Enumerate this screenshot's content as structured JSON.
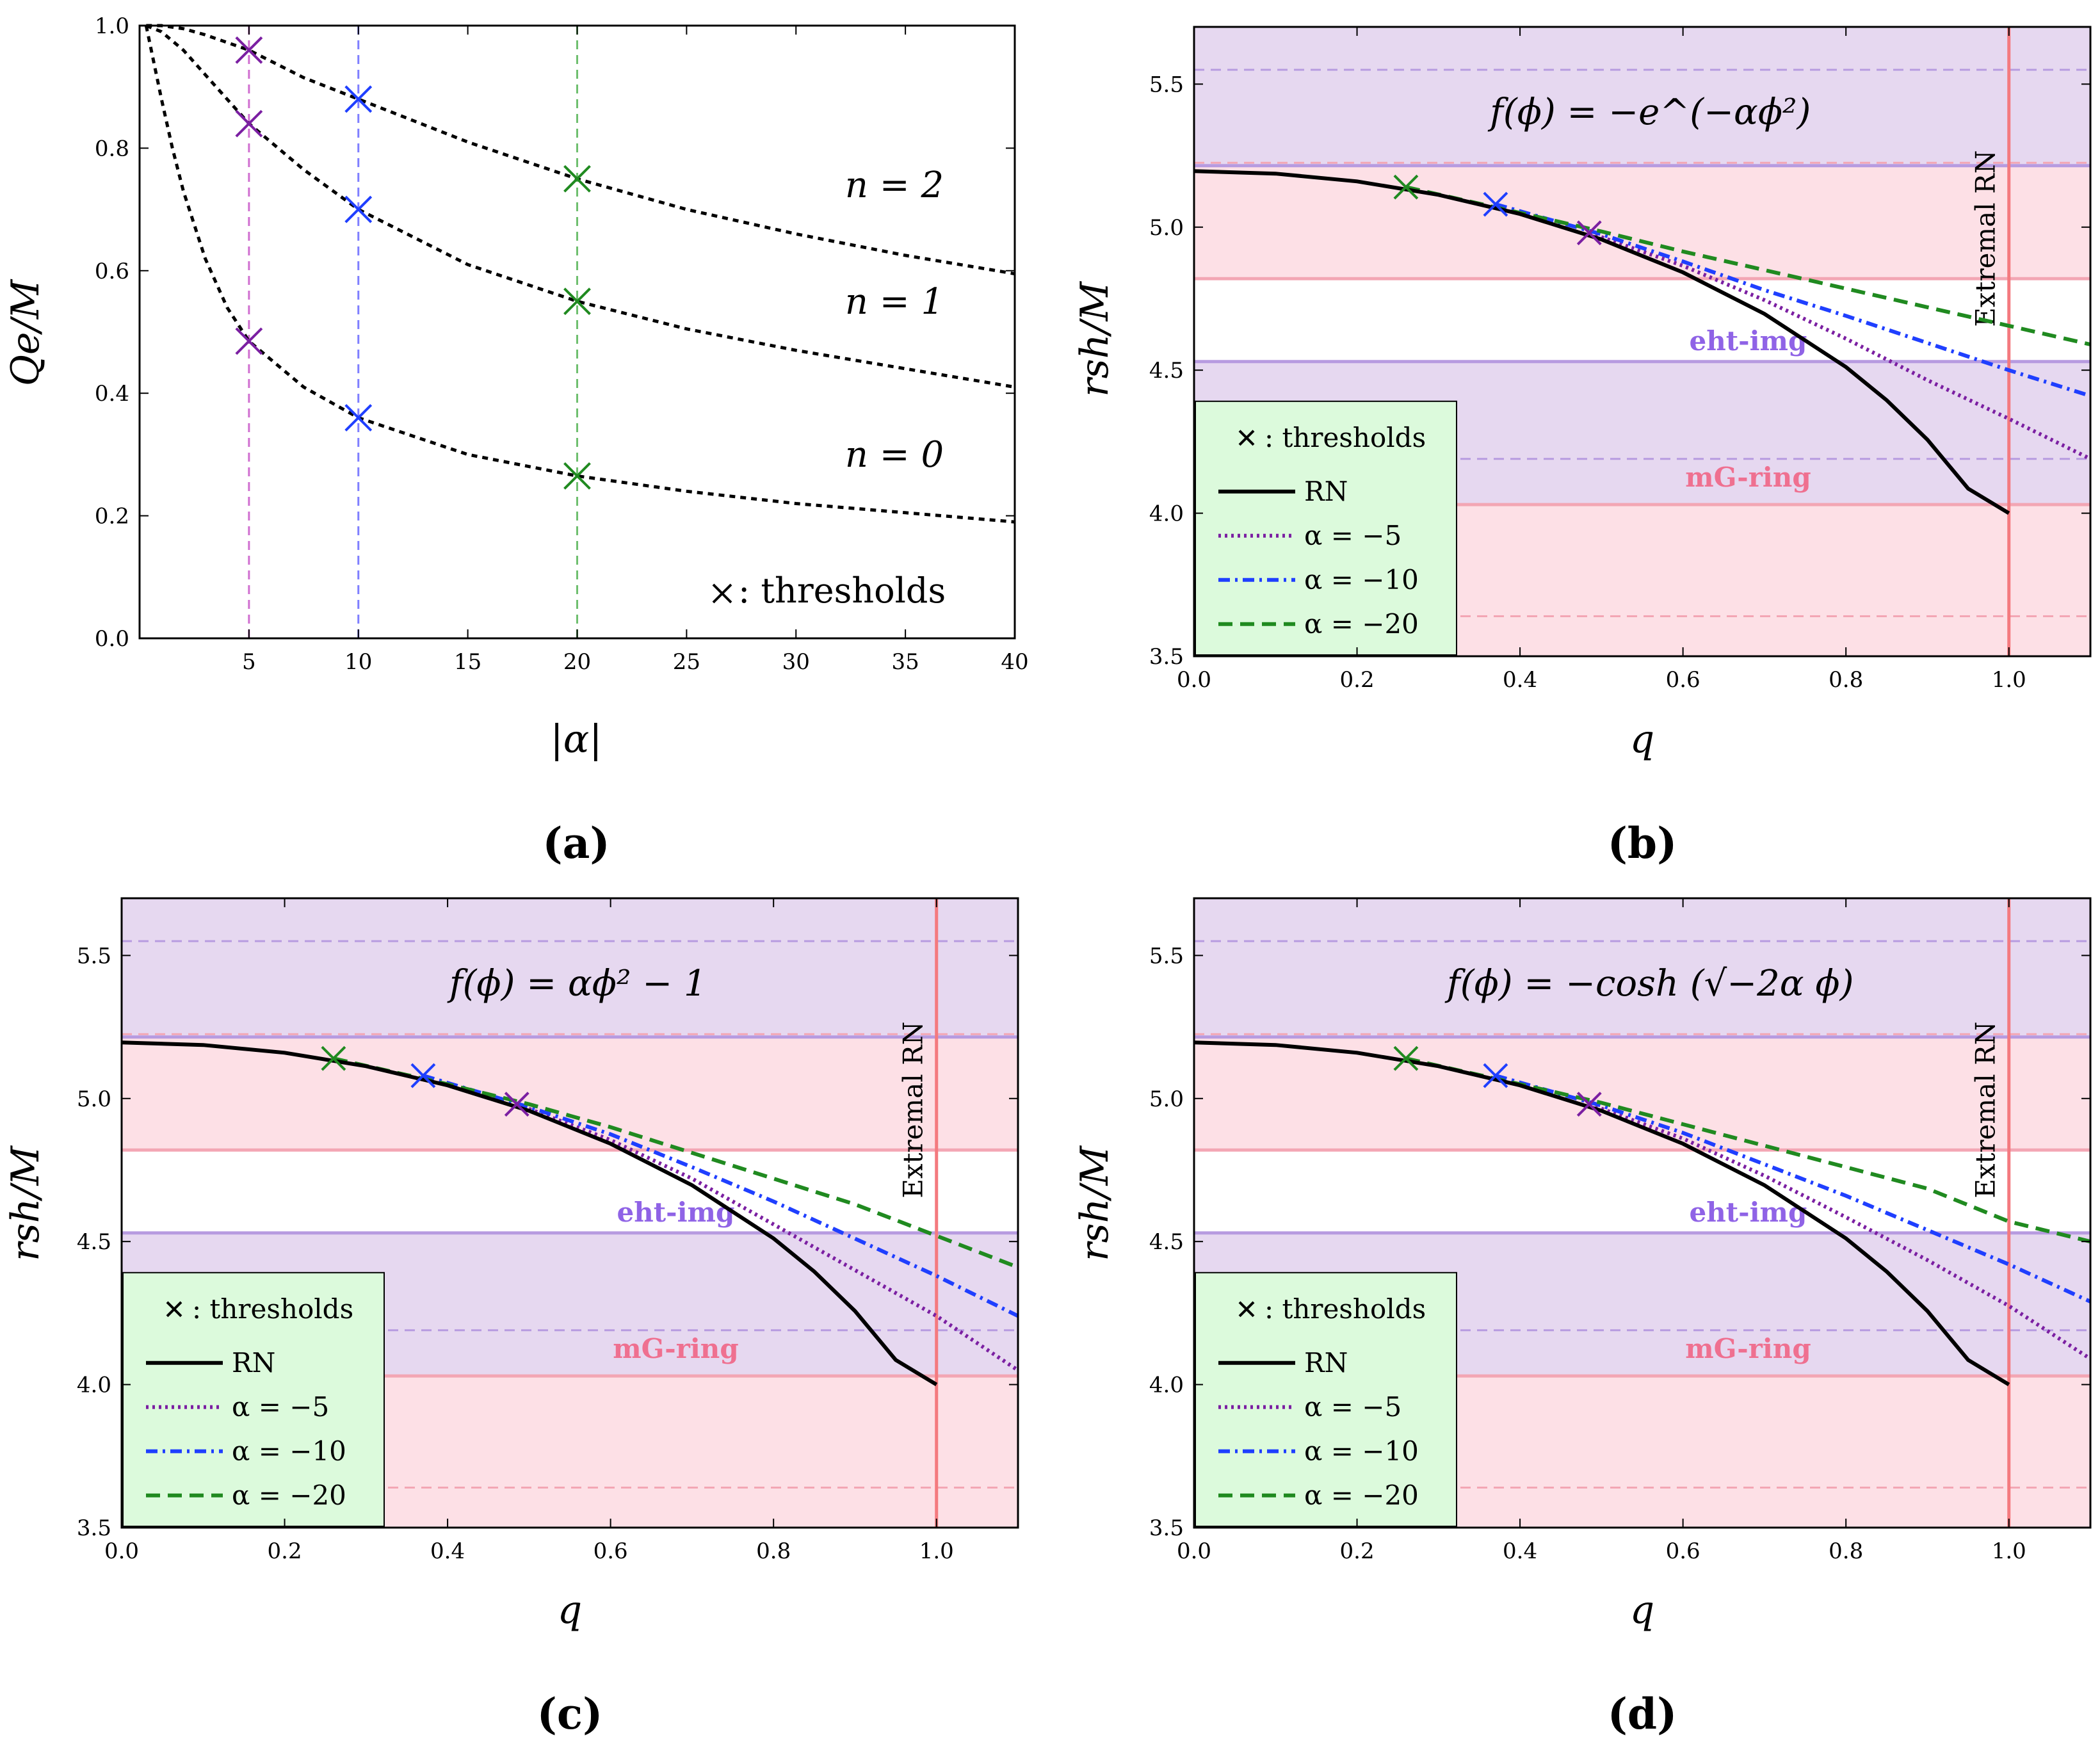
{
  "colors": {
    "violet_band": "#e6d8f0",
    "pink_band": "#fde0e6",
    "violet_line": "#b79be0",
    "pink_line": "#f3a6b4",
    "extremal_line": "#f47a7f",
    "legend_bg": "#dcfadc",
    "purple": "#7b1fa2",
    "blue": "#1f3fff",
    "green": "#208a20",
    "black": "#000000",
    "violet_text": "#8f63e6",
    "pink_text": "#ef7090",
    "grid_purple": "#d06fd0",
    "grid_blue": "#7f7fff",
    "grid_green": "#6fbf6f"
  },
  "chart_data": [
    {
      "id": "a",
      "type": "line",
      "caption": "(a)",
      "xlabel": "|α|",
      "ylabel": "Qe/M",
      "xlim": [
        0,
        40
      ],
      "ylim": [
        0,
        1
      ],
      "xticks": [
        "5",
        "10",
        "15",
        "20",
        "25",
        "30",
        "35",
        "40"
      ],
      "xtick_values": [
        5,
        10,
        15,
        20,
        25,
        30,
        35,
        40
      ],
      "yticks": [
        "0.0",
        "0.2",
        "0.4",
        "0.6",
        "0.8",
        "1.0"
      ],
      "ytick_values": [
        0,
        0.2,
        0.4,
        0.6,
        0.8,
        1.0
      ],
      "vertical_lines": [
        {
          "x": 5,
          "color": "grid_purple"
        },
        {
          "x": 10,
          "color": "grid_blue"
        },
        {
          "x": 20,
          "color": "grid_green"
        }
      ],
      "series": [
        {
          "name": "n = 2",
          "x": [
            0.3,
            1,
            2,
            3,
            5,
            7.5,
            10,
            15,
            20,
            25,
            30,
            35,
            40
          ],
          "y": [
            1.0,
            1.0,
            0.995,
            0.985,
            0.96,
            0.915,
            0.88,
            0.81,
            0.75,
            0.7,
            0.66,
            0.625,
            0.595
          ]
        },
        {
          "name": "n = 1",
          "x": [
            0.3,
            1,
            2,
            3,
            5,
            7.5,
            10,
            15,
            20,
            25,
            30,
            35,
            40
          ],
          "y": [
            1.0,
            0.99,
            0.96,
            0.92,
            0.84,
            0.765,
            0.7,
            0.61,
            0.55,
            0.505,
            0.47,
            0.44,
            0.41
          ]
        },
        {
          "name": "n = 0",
          "x": [
            0.3,
            1,
            1.5,
            2,
            3,
            4,
            5,
            7.5,
            10,
            15,
            20,
            25,
            30,
            35,
            40
          ],
          "y": [
            1.0,
            0.88,
            0.8,
            0.73,
            0.62,
            0.54,
            0.485,
            0.41,
            0.36,
            0.3,
            0.265,
            0.24,
            0.22,
            0.205,
            0.19
          ]
        }
      ],
      "thresholds": [
        {
          "x": 5,
          "y": 0.96,
          "color": "purple"
        },
        {
          "x": 5,
          "y": 0.84,
          "color": "purple"
        },
        {
          "x": 5,
          "y": 0.485,
          "color": "purple"
        },
        {
          "x": 10,
          "y": 0.88,
          "color": "blue"
        },
        {
          "x": 10,
          "y": 0.7,
          "color": "blue"
        },
        {
          "x": 10,
          "y": 0.36,
          "color": "blue"
        },
        {
          "x": 20,
          "y": 0.75,
          "color": "green"
        },
        {
          "x": 20,
          "y": 0.55,
          "color": "green"
        },
        {
          "x": 20,
          "y": 0.265,
          "color": "green"
        }
      ],
      "labels": [
        {
          "text": "n = 2",
          "x": 34.5,
          "y": 0.72
        },
        {
          "text": "n = 1",
          "x": 34.5,
          "y": 0.53
        },
        {
          "text": "n = 0",
          "x": 34.5,
          "y": 0.28
        }
      ],
      "legend": "× :  thresholds"
    },
    {
      "id": "b",
      "type": "line",
      "caption": "(b)",
      "title": "f(ϕ) = −e^(−αϕ²)",
      "xlabel": "q",
      "ylabel": "rsh/M",
      "xlim": [
        0,
        1.1
      ],
      "ylim": [
        3.5,
        5.7
      ],
      "xticks": [
        "0.0",
        "0.2",
        "0.4",
        "0.6",
        "0.8",
        "1.0"
      ],
      "xtick_values": [
        0,
        0.2,
        0.4,
        0.6,
        0.8,
        1.0
      ],
      "yticks": [
        "3.5",
        "4.0",
        "4.5",
        "5.0",
        "5.5"
      ],
      "ytick_values": [
        3.5,
        4.0,
        4.5,
        5.0,
        5.5
      ],
      "series": [
        {
          "name": "RN",
          "x": [
            0,
            0.1,
            0.2,
            0.3,
            0.4,
            0.5,
            0.6,
            0.7,
            0.8,
            0.85,
            0.9,
            0.95,
            1.0
          ],
          "y": [
            5.196,
            5.187,
            5.16,
            5.113,
            5.046,
            4.957,
            4.842,
            4.697,
            4.511,
            4.395,
            4.257,
            4.086,
            4.0
          ]
        },
        {
          "name": "α = −5",
          "x": [
            0.485,
            0.6,
            0.7,
            0.8,
            0.9,
            1.0,
            1.1
          ],
          "y": [
            4.98,
            4.865,
            4.745,
            4.61,
            4.465,
            4.33,
            4.19
          ]
        },
        {
          "name": "α = −10",
          "x": [
            0.37,
            0.5,
            0.6,
            0.7,
            0.8,
            0.9,
            1.0,
            1.1
          ],
          "y": [
            5.08,
            4.975,
            4.88,
            4.78,
            4.69,
            4.595,
            4.5,
            4.41
          ]
        },
        {
          "name": "α = −20",
          "x": [
            0.26,
            0.4,
            0.5,
            0.6,
            0.7,
            0.8,
            0.9,
            1.0,
            1.1
          ],
          "y": [
            5.14,
            5.05,
            4.985,
            4.915,
            4.85,
            4.785,
            4.72,
            4.655,
            4.59
          ]
        }
      ],
      "thresholds": [
        {
          "x": 0.26,
          "y": 5.14,
          "color": "green"
        },
        {
          "x": 0.37,
          "y": 5.08,
          "color": "blue"
        },
        {
          "x": 0.485,
          "y": 4.98,
          "color": "purple"
        }
      ]
    },
    {
      "id": "c",
      "type": "line",
      "caption": "(c)",
      "title": "f(ϕ) = αϕ² − 1",
      "xlabel": "q",
      "ylabel": "rsh/M",
      "xlim": [
        0,
        1.1
      ],
      "ylim": [
        3.5,
        5.7
      ],
      "xticks": [
        "0.0",
        "0.2",
        "0.4",
        "0.6",
        "0.8",
        "1.0"
      ],
      "xtick_values": [
        0,
        0.2,
        0.4,
        0.6,
        0.8,
        1.0
      ],
      "yticks": [
        "3.5",
        "4.0",
        "4.5",
        "5.0",
        "5.5"
      ],
      "ytick_values": [
        3.5,
        4.0,
        4.5,
        5.0,
        5.5
      ],
      "series": [
        {
          "name": "RN",
          "x": [
            0,
            0.1,
            0.2,
            0.3,
            0.4,
            0.5,
            0.6,
            0.7,
            0.8,
            0.85,
            0.9,
            0.95,
            1.0
          ],
          "y": [
            5.196,
            5.187,
            5.16,
            5.113,
            5.046,
            4.957,
            4.842,
            4.697,
            4.511,
            4.395,
            4.257,
            4.086,
            4.0
          ]
        },
        {
          "name": "α = −5",
          "x": [
            0.485,
            0.6,
            0.7,
            0.8,
            0.9,
            1.0,
            1.1
          ],
          "y": [
            4.98,
            4.855,
            4.72,
            4.56,
            4.4,
            4.24,
            4.05
          ]
        },
        {
          "name": "α = −10",
          "x": [
            0.37,
            0.5,
            0.6,
            0.7,
            0.8,
            0.9,
            1.0,
            1.1
          ],
          "y": [
            5.08,
            4.97,
            4.875,
            4.76,
            4.64,
            4.51,
            4.38,
            4.24
          ]
        },
        {
          "name": "α = −20",
          "x": [
            0.26,
            0.4,
            0.5,
            0.6,
            0.7,
            0.8,
            0.9,
            1.0,
            1.1
          ],
          "y": [
            5.14,
            5.05,
            4.98,
            4.9,
            4.81,
            4.72,
            4.63,
            4.52,
            4.41
          ]
        }
      ],
      "thresholds": [
        {
          "x": 0.26,
          "y": 5.14,
          "color": "green"
        },
        {
          "x": 0.37,
          "y": 5.08,
          "color": "blue"
        },
        {
          "x": 0.485,
          "y": 4.98,
          "color": "purple"
        }
      ]
    },
    {
      "id": "d",
      "type": "line",
      "caption": "(d)",
      "title": "f(ϕ) = −cosh (√−2α ϕ)",
      "xlabel": "q",
      "ylabel": "rsh/M",
      "xlim": [
        0,
        1.1
      ],
      "ylim": [
        3.5,
        5.7
      ],
      "xticks": [
        "0.0",
        "0.2",
        "0.4",
        "0.6",
        "0.8",
        "1.0"
      ],
      "xtick_values": [
        0,
        0.2,
        0.4,
        0.6,
        0.8,
        1.0
      ],
      "yticks": [
        "3.5",
        "4.0",
        "4.5",
        "5.0",
        "5.5"
      ],
      "ytick_values": [
        3.5,
        4.0,
        4.5,
        5.0,
        5.5
      ],
      "series": [
        {
          "name": "RN",
          "x": [
            0,
            0.1,
            0.2,
            0.3,
            0.4,
            0.5,
            0.6,
            0.7,
            0.8,
            0.85,
            0.9,
            0.95,
            1.0
          ],
          "y": [
            5.196,
            5.187,
            5.16,
            5.113,
            5.046,
            4.957,
            4.842,
            4.697,
            4.511,
            4.395,
            4.257,
            4.086,
            4.0
          ]
        },
        {
          "name": "α = −5",
          "x": [
            0.485,
            0.6,
            0.7,
            0.8,
            0.9,
            1.0,
            1.1
          ],
          "y": [
            4.98,
            4.86,
            4.73,
            4.585,
            4.435,
            4.275,
            4.09
          ]
        },
        {
          "name": "α = −10",
          "x": [
            0.37,
            0.5,
            0.6,
            0.7,
            0.8,
            0.9,
            1.0,
            1.1
          ],
          "y": [
            5.08,
            4.975,
            4.88,
            4.77,
            4.66,
            4.54,
            4.42,
            4.29
          ]
        },
        {
          "name": "α = −20",
          "x": [
            0.26,
            0.4,
            0.5,
            0.6,
            0.7,
            0.8,
            0.9,
            1.0,
            1.1
          ],
          "y": [
            5.14,
            5.05,
            4.985,
            4.91,
            4.835,
            4.76,
            4.685,
            4.57,
            4.5
          ]
        }
      ],
      "thresholds": [
        {
          "x": 0.26,
          "y": 5.14,
          "color": "green"
        },
        {
          "x": 0.37,
          "y": 5.08,
          "color": "blue"
        },
        {
          "x": 0.485,
          "y": 4.98,
          "color": "purple"
        }
      ]
    }
  ],
  "shadow_panel": {
    "violet_band_upper": [
      5.22,
      5.7
    ],
    "pink_band": [
      3.5,
      5.22
    ],
    "white_gap": [
      4.53,
      4.82
    ],
    "violet_band_lower": [
      4.03,
      4.53
    ],
    "lines": [
      {
        "y": 5.55,
        "style": "dashed",
        "color": "violet_line"
      },
      {
        "y": 5.225,
        "style": "dashed",
        "color": "pink_line"
      },
      {
        "y": 5.215,
        "style": "solid",
        "color": "violet_line"
      },
      {
        "y": 4.82,
        "style": "solid",
        "color": "pink_line"
      },
      {
        "y": 4.53,
        "style": "solid",
        "color": "violet_line"
      },
      {
        "y": 4.19,
        "style": "dashed",
        "color": "violet_line"
      },
      {
        "y": 4.03,
        "style": "solid",
        "color": "pink_line"
      },
      {
        "y": 3.64,
        "style": "dashed",
        "color": "pink_line"
      }
    ],
    "eht_label": "eht-img",
    "mg_label": "mG-ring",
    "extremal_label": "Extremal RN",
    "extremal_q": 1.0,
    "legend": {
      "thresholds": "× :  thresholds",
      "rn": "RN",
      "a5": "α = −5",
      "a10": "α = −10",
      "a20": "α = −20"
    }
  }
}
